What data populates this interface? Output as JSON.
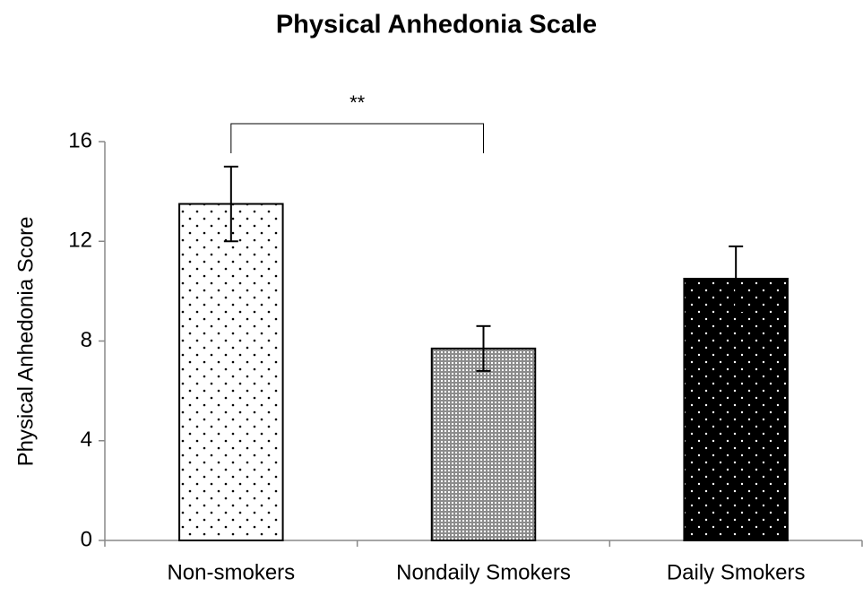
{
  "chart_data": {
    "type": "bar",
    "title": "Physical Anhedonia Scale",
    "ylabel": "Physical Anhedonia Score",
    "categories": [
      "Non-smokers",
      "Nondaily Smokers",
      "Daily Smokers"
    ],
    "values": [
      13.5,
      7.7,
      10.5
    ],
    "errors": [
      1.5,
      0.9,
      1.3
    ],
    "colors": [
      "#ffffff",
      "#8c8c8c",
      "#000000"
    ],
    "ylim": [
      0,
      16
    ],
    "yticks": [
      0,
      4,
      8,
      12,
      16
    ],
    "grid": false,
    "annotations": [
      {
        "text": "**",
        "from": 0,
        "to": 1
      }
    ]
  }
}
